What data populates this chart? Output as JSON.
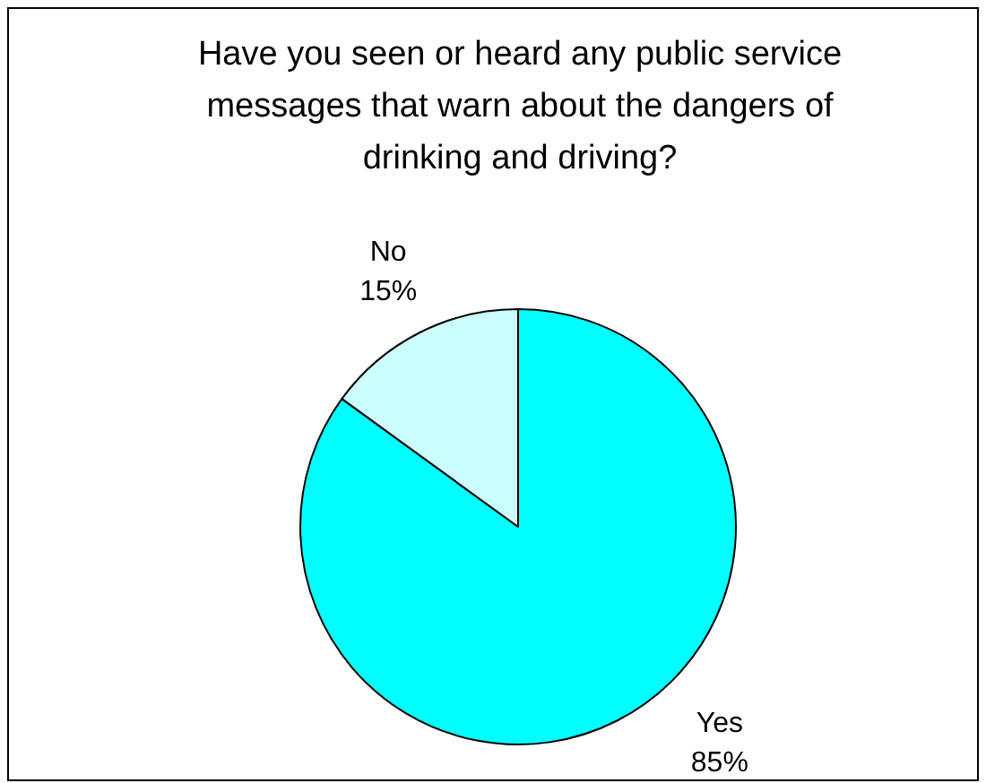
{
  "chart_data": {
    "type": "pie",
    "title": "Have you seen or heard any public service messages that warn about the dangers of drinking and driving?",
    "categories": [
      "Yes",
      "No"
    ],
    "values": [
      85,
      15
    ],
    "colors": [
      "#00ffff",
      "#ccffff"
    ],
    "value_labels": [
      "85%",
      "15%"
    ],
    "legend": false
  }
}
